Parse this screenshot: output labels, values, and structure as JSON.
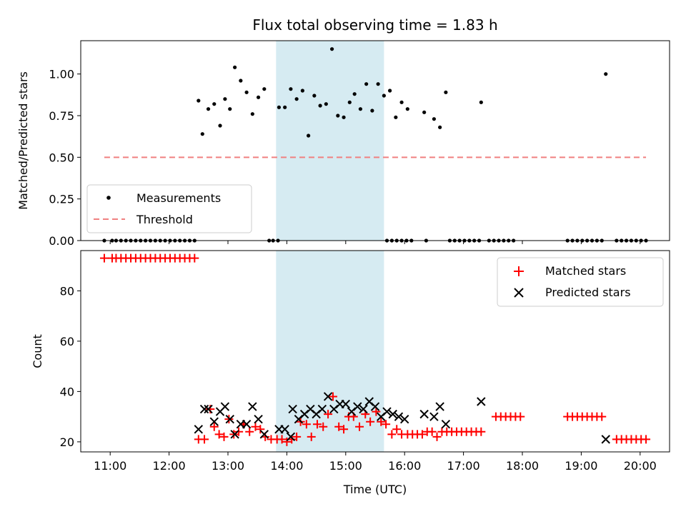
{
  "chart_data": [
    {
      "type": "scatter",
      "title": "Flux total observing time = 1.83 h",
      "xlabel": "",
      "ylabel": "Matched/Predicted stars",
      "xlim": [
        "10:30",
        "20:30"
      ],
      "ylim": [
        0,
        1.2
      ],
      "yticks": [
        0.0,
        0.25,
        0.5,
        0.75,
        1.0
      ],
      "ytick_labels": [
        "0.00",
        "0.25",
        "0.50",
        "0.75",
        "1.00"
      ],
      "grid": false,
      "legend": "lower-left",
      "highlight_span": {
        "from": "13:49",
        "to": "15:39",
        "color": "#add8e6"
      },
      "series": [
        {
          "name": "Measurements",
          "marker": "dot",
          "color": "#000000",
          "points": [
            [
              "10:54",
              0
            ],
            [
              "11:02",
              0
            ],
            [
              "11:06",
              0
            ],
            [
              "11:11",
              0
            ],
            [
              "11:16",
              0
            ],
            [
              "11:21",
              0
            ],
            [
              "11:26",
              0
            ],
            [
              "11:31",
              0
            ],
            [
              "11:36",
              0
            ],
            [
              "11:41",
              0
            ],
            [
              "11:46",
              0
            ],
            [
              "11:51",
              0
            ],
            [
              "11:56",
              0
            ],
            [
              "12:01",
              0
            ],
            [
              "12:06",
              0
            ],
            [
              "12:11",
              0
            ],
            [
              "12:16",
              0
            ],
            [
              "12:21",
              0
            ],
            [
              "12:26",
              0
            ],
            [
              "12:30",
              0.84
            ],
            [
              "12:34",
              0.64
            ],
            [
              "12:40",
              0.79
            ],
            [
              "12:46",
              0.82
            ],
            [
              "12:52",
              0.69
            ],
            [
              "12:57",
              0.85
            ],
            [
              "13:02",
              0.79
            ],
            [
              "13:07",
              1.04
            ],
            [
              "13:13",
              0.96
            ],
            [
              "13:19",
              0.89
            ],
            [
              "13:25",
              0.76
            ],
            [
              "13:31",
              0.86
            ],
            [
              "13:37",
              0.91
            ],
            [
              "13:42",
              0
            ],
            [
              "13:46",
              0
            ],
            [
              "13:51",
              0
            ],
            [
              "13:52",
              0.8
            ],
            [
              "13:58",
              0.8
            ],
            [
              "14:04",
              0.91
            ],
            [
              "14:10",
              0.85
            ],
            [
              "14:16",
              0.9
            ],
            [
              "14:22",
              0.63
            ],
            [
              "14:28",
              0.87
            ],
            [
              "14:34",
              0.81
            ],
            [
              "14:40",
              0.82
            ],
            [
              "14:46",
              1.15
            ],
            [
              "14:52",
              0.75
            ],
            [
              "14:58",
              0.74
            ],
            [
              "15:04",
              0.83
            ],
            [
              "15:09",
              0.88
            ],
            [
              "15:15",
              0.79
            ],
            [
              "15:21",
              0.94
            ],
            [
              "15:27",
              0.78
            ],
            [
              "15:33",
              0.94
            ],
            [
              "15:39",
              0.87
            ],
            [
              "15:45",
              0.9
            ],
            [
              "15:51",
              0.74
            ],
            [
              "15:57",
              0.83
            ],
            [
              "16:03",
              0.79
            ],
            [
              "15:42",
              0
            ],
            [
              "15:47",
              0
            ],
            [
              "15:52",
              0
            ],
            [
              "15:57",
              0
            ],
            [
              "16:02",
              0
            ],
            [
              "16:07",
              0
            ],
            [
              "16:22",
              0
            ],
            [
              "16:46",
              0
            ],
            [
              "16:51",
              0
            ],
            [
              "16:56",
              0
            ],
            [
              "17:01",
              0
            ],
            [
              "17:06",
              0
            ],
            [
              "17:11",
              0
            ],
            [
              "17:16",
              0
            ],
            [
              "17:26",
              0
            ],
            [
              "17:31",
              0
            ],
            [
              "17:36",
              0
            ],
            [
              "17:41",
              0
            ],
            [
              "17:46",
              0
            ],
            [
              "17:51",
              0
            ],
            [
              "18:46",
              0
            ],
            [
              "18:51",
              0
            ],
            [
              "18:56",
              0
            ],
            [
              "19:01",
              0
            ],
            [
              "19:06",
              0
            ],
            [
              "19:11",
              0
            ],
            [
              "19:16",
              0
            ],
            [
              "19:21",
              0
            ],
            [
              "19:36",
              0
            ],
            [
              "19:41",
              0
            ],
            [
              "19:46",
              0
            ],
            [
              "19:51",
              0
            ],
            [
              "19:56",
              0
            ],
            [
              "20:01",
              0
            ],
            [
              "20:06",
              0
            ],
            [
              "16:20",
              0.77
            ],
            [
              "16:30",
              0.73
            ],
            [
              "16:36",
              0.68
            ],
            [
              "16:42",
              0.89
            ],
            [
              "17:18",
              0.83
            ],
            [
              "19:25",
              1.0
            ]
          ]
        },
        {
          "name": "Threshold",
          "line": "dashed",
          "color": "#f08080",
          "points": [
            [
              "10:54",
              0.5
            ],
            [
              "20:06",
              0.5
            ]
          ]
        }
      ]
    },
    {
      "type": "scatter",
      "title": "",
      "xlabel": "Time (UTC)",
      "ylabel": "Count",
      "xlim": [
        "10:30",
        "20:30"
      ],
      "ylim": [
        16,
        96
      ],
      "xticks": [
        "11:00",
        "12:00",
        "13:00",
        "14:00",
        "15:00",
        "16:00",
        "17:00",
        "18:00",
        "19:00",
        "20:00"
      ],
      "yticks": [
        20,
        40,
        60,
        80
      ],
      "ytick_labels": [
        "20",
        "40",
        "60",
        "80"
      ],
      "grid": false,
      "legend": "upper-right",
      "highlight_span": {
        "from": "13:49",
        "to": "15:39",
        "color": "#add8e6"
      },
      "series": [
        {
          "name": "Matched stars",
          "marker": "plus",
          "color": "#ff0000",
          "points": [
            [
              "10:54",
              93
            ],
            [
              "11:02",
              93
            ],
            [
              "11:06",
              93
            ],
            [
              "11:11",
              93
            ],
            [
              "11:16",
              93
            ],
            [
              "11:21",
              93
            ],
            [
              "11:26",
              93
            ],
            [
              "11:31",
              93
            ],
            [
              "11:36",
              93
            ],
            [
              "11:41",
              93
            ],
            [
              "11:46",
              93
            ],
            [
              "11:51",
              93
            ],
            [
              "11:56",
              93
            ],
            [
              "12:01",
              93
            ],
            [
              "12:06",
              93
            ],
            [
              "12:11",
              93
            ],
            [
              "12:16",
              93
            ],
            [
              "12:21",
              93
            ],
            [
              "12:26",
              93
            ],
            [
              "12:30",
              21
            ],
            [
              "12:36",
              21
            ],
            [
              "12:42",
              33
            ],
            [
              "12:46",
              26
            ],
            [
              "12:51",
              23
            ],
            [
              "12:56",
              22
            ],
            [
              "13:01",
              29
            ],
            [
              "13:06",
              23
            ],
            [
              "13:11",
              24
            ],
            [
              "13:16",
              27
            ],
            [
              "13:22",
              24
            ],
            [
              "13:28",
              26
            ],
            [
              "13:33",
              25
            ],
            [
              "13:38",
              22
            ],
            [
              "13:44",
              21
            ],
            [
              "13:50",
              21
            ],
            [
              "13:55",
              21
            ],
            [
              "14:00",
              20
            ],
            [
              "14:05",
              21
            ],
            [
              "14:10",
              22
            ],
            [
              "14:14",
              28
            ],
            [
              "14:20",
              27
            ],
            [
              "14:25",
              22
            ],
            [
              "14:31",
              27
            ],
            [
              "14:37",
              26
            ],
            [
              "14:42",
              31
            ],
            [
              "14:47",
              38
            ],
            [
              "14:53",
              26
            ],
            [
              "14:58",
              25
            ],
            [
              "15:03",
              30
            ],
            [
              "15:08",
              30
            ],
            [
              "15:14",
              26
            ],
            [
              "15:20",
              31
            ],
            [
              "15:25",
              28
            ],
            [
              "15:31",
              32
            ],
            [
              "15:36",
              28
            ],
            [
              "15:41",
              27
            ],
            [
              "15:47",
              23
            ],
            [
              "15:52",
              25
            ],
            [
              "15:57",
              23
            ],
            [
              "16:03",
              23
            ],
            [
              "16:08",
              23
            ],
            [
              "16:13",
              23
            ],
            [
              "16:18",
              23
            ],
            [
              "16:23",
              24
            ],
            [
              "16:28",
              24
            ],
            [
              "16:33",
              22
            ],
            [
              "16:38",
              24
            ],
            [
              "16:43",
              24
            ],
            [
              "16:48",
              24
            ],
            [
              "16:53",
              24
            ],
            [
              "16:58",
              24
            ],
            [
              "17:03",
              24
            ],
            [
              "17:08",
              24
            ],
            [
              "17:13",
              24
            ],
            [
              "17:18",
              24
            ],
            [
              "17:33",
              30
            ],
            [
              "17:38",
              30
            ],
            [
              "17:43",
              30
            ],
            [
              "17:48",
              30
            ],
            [
              "17:53",
              30
            ],
            [
              "17:58",
              30
            ],
            [
              "18:46",
              30
            ],
            [
              "18:51",
              30
            ],
            [
              "18:56",
              30
            ],
            [
              "19:01",
              30
            ],
            [
              "19:06",
              30
            ],
            [
              "19:11",
              30
            ],
            [
              "19:16",
              30
            ],
            [
              "19:21",
              30
            ],
            [
              "19:36",
              21
            ],
            [
              "19:41",
              21
            ],
            [
              "19:46",
              21
            ],
            [
              "19:51",
              21
            ],
            [
              "19:56",
              21
            ],
            [
              "20:01",
              21
            ],
            [
              "20:06",
              21
            ]
          ]
        },
        {
          "name": "Predicted stars",
          "marker": "x",
          "color": "#000000",
          "points": [
            [
              "12:30",
              25
            ],
            [
              "12:36",
              33
            ],
            [
              "12:40",
              33
            ],
            [
              "12:46",
              28
            ],
            [
              "12:52",
              32
            ],
            [
              "12:57",
              34
            ],
            [
              "13:02",
              29
            ],
            [
              "13:07",
              23
            ],
            [
              "13:13",
              27
            ],
            [
              "13:19",
              27
            ],
            [
              "13:25",
              34
            ],
            [
              "13:31",
              29
            ],
            [
              "13:37",
              23
            ],
            [
              "13:52",
              25
            ],
            [
              "13:58",
              25
            ],
            [
              "14:04",
              22
            ],
            [
              "14:06",
              33
            ],
            [
              "14:12",
              29
            ],
            [
              "14:18",
              31
            ],
            [
              "14:24",
              33
            ],
            [
              "14:30",
              31
            ],
            [
              "14:36",
              33
            ],
            [
              "14:42",
              38
            ],
            [
              "14:48",
              33
            ],
            [
              "14:54",
              35
            ],
            [
              "15:00",
              35
            ],
            [
              "15:06",
              32
            ],
            [
              "15:12",
              34
            ],
            [
              "15:18",
              33
            ],
            [
              "15:24",
              36
            ],
            [
              "15:30",
              34
            ],
            [
              "15:36",
              30
            ],
            [
              "15:42",
              32
            ],
            [
              "15:48",
              31
            ],
            [
              "15:54",
              30
            ],
            [
              "16:00",
              29
            ],
            [
              "16:20",
              31
            ],
            [
              "16:30",
              30
            ],
            [
              "16:36",
              34
            ],
            [
              "16:42",
              27
            ],
            [
              "17:18",
              36
            ],
            [
              "19:25",
              21
            ]
          ]
        }
      ]
    }
  ]
}
